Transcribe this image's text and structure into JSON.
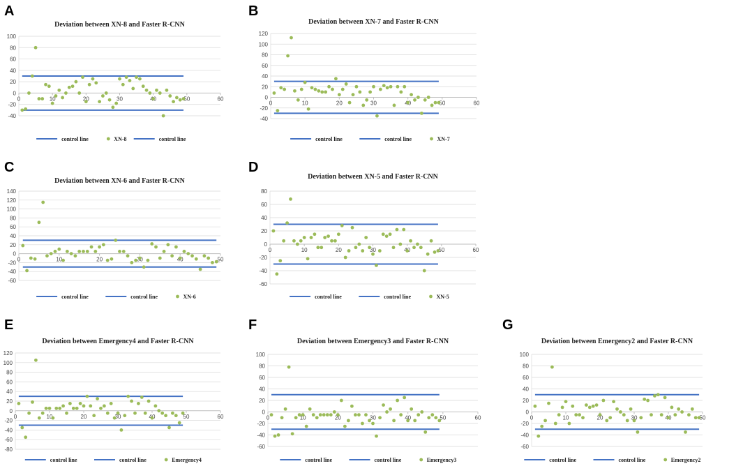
{
  "colors": {
    "control_line": "#4472C4",
    "point": "#9BBB59",
    "gridline": "#D9D9D9",
    "axis": "#BFBFBF"
  },
  "chart_data": [
    {
      "panel": "A",
      "type": "scatter",
      "title": "Deviation between XN-8 and Faster R-CNN",
      "xlim": [
        0,
        60
      ],
      "ylim": [
        -40,
        100
      ],
      "ystep": 20,
      "xticks": [
        0,
        10,
        20,
        30,
        40,
        50,
        60
      ],
      "yticks": [
        -40,
        -20,
        0,
        20,
        40,
        60,
        80,
        100
      ],
      "control_lines": [
        30,
        -30
      ],
      "control_x": [
        1,
        49
      ],
      "series_name": "XN-8",
      "legend": [
        "control line",
        "XN-8",
        "control line"
      ],
      "x": [
        1,
        2,
        3,
        4,
        5,
        6,
        7,
        8,
        9,
        10,
        11,
        12,
        13,
        14,
        15,
        16,
        17,
        18,
        19,
        20,
        21,
        22,
        23,
        24,
        25,
        26,
        27,
        28,
        29,
        30,
        31,
        32,
        33,
        34,
        35,
        36,
        37,
        38,
        39,
        40,
        41,
        42,
        43,
        44,
        45,
        46,
        47,
        48,
        49
      ],
      "y": [
        -30,
        -28,
        0,
        30,
        80,
        -10,
        -10,
        15,
        12,
        -18,
        -5,
        5,
        -8,
        0,
        10,
        12,
        20,
        0,
        28,
        -15,
        15,
        25,
        18,
        -15,
        -5,
        0,
        -12,
        -25,
        -18,
        25,
        15,
        28,
        22,
        8,
        28,
        25,
        12,
        5,
        0,
        -10,
        5,
        0,
        -40,
        5,
        -5,
        -15,
        -8,
        -12,
        -10
      ]
    },
    {
      "panel": "B",
      "type": "scatter",
      "title": "Deviation between XN-7 and Faster R-CNN",
      "xlim": [
        0,
        60
      ],
      "ylim": [
        -40,
        120
      ],
      "ystep": 20,
      "xticks": [
        0,
        10,
        20,
        30,
        40,
        50,
        60
      ],
      "yticks": [
        -40,
        -20,
        0,
        20,
        40,
        60,
        80,
        100,
        120
      ],
      "control_lines": [
        30,
        -30
      ],
      "control_x": [
        1,
        49
      ],
      "series_name": "XN-7",
      "legend": [
        "control line",
        "control line",
        "XN-7"
      ],
      "x": [
        1,
        2,
        3,
        4,
        5,
        6,
        7,
        8,
        9,
        10,
        11,
        12,
        13,
        14,
        15,
        16,
        17,
        18,
        19,
        20,
        21,
        22,
        23,
        24,
        25,
        26,
        27,
        28,
        29,
        30,
        31,
        32,
        33,
        34,
        35,
        36,
        37,
        38,
        39,
        40,
        41,
        42,
        43,
        44,
        45,
        46,
        47,
        48,
        49
      ],
      "y": [
        8,
        -25,
        18,
        15,
        78,
        112,
        12,
        -5,
        15,
        28,
        -22,
        18,
        15,
        12,
        10,
        10,
        20,
        15,
        35,
        5,
        15,
        25,
        -10,
        5,
        20,
        10,
        -15,
        -5,
        10,
        20,
        -35,
        15,
        22,
        18,
        20,
        -15,
        20,
        10,
        20,
        -10,
        5,
        -5,
        0,
        -30,
        -5,
        0,
        -15,
        -10,
        -10
      ]
    },
    {
      "panel": "C",
      "type": "scatter",
      "title": "Deviation between XN-6 and Faster R-CNN",
      "xlim": [
        0,
        50
      ],
      "ylim": [
        -60,
        140
      ],
      "ystep": 20,
      "xticks": [
        0,
        10,
        20,
        30,
        40,
        50
      ],
      "yticks": [
        -60,
        -40,
        -20,
        0,
        20,
        40,
        60,
        80,
        100,
        120,
        140
      ],
      "control_lines": [
        30,
        -30
      ],
      "control_x": [
        1,
        49
      ],
      "series_name": "XN-6",
      "legend": [
        "control line",
        "control line",
        "XN-6"
      ],
      "x": [
        1,
        2,
        3,
        4,
        5,
        6,
        7,
        8,
        9,
        10,
        11,
        12,
        13,
        14,
        15,
        16,
        17,
        18,
        19,
        20,
        21,
        22,
        23,
        24,
        25,
        26,
        27,
        28,
        29,
        30,
        31,
        32,
        33,
        34,
        35,
        36,
        37,
        38,
        39,
        40,
        41,
        42,
        43,
        44,
        45,
        46,
        47,
        48,
        49
      ],
      "y": [
        18,
        -38,
        -10,
        -12,
        70,
        115,
        -5,
        0,
        5,
        10,
        -15,
        5,
        0,
        -5,
        5,
        5,
        5,
        15,
        5,
        15,
        20,
        -15,
        -12,
        30,
        5,
        5,
        -5,
        -20,
        -15,
        -10,
        -30,
        -15,
        22,
        15,
        -10,
        5,
        20,
        -5,
        15,
        -10,
        5,
        0,
        -5,
        -12,
        -35,
        -5,
        -10,
        -20,
        -18
      ]
    },
    {
      "panel": "D",
      "type": "scatter",
      "title": "Deviation between XN-5 and Faster R-CNN",
      "xlim": [
        0,
        60
      ],
      "ylim": [
        -60,
        80
      ],
      "ystep": 20,
      "xticks": [
        0,
        10,
        20,
        30,
        40,
        50,
        60
      ],
      "yticks": [
        -60,
        -40,
        -20,
        0,
        20,
        40,
        60,
        80
      ],
      "control_lines": [
        30,
        -30
      ],
      "control_x": [
        1,
        49
      ],
      "series_name": "XN-5",
      "legend": [
        "control line",
        "control line",
        "XN-5"
      ],
      "x": [
        1,
        2,
        3,
        4,
        5,
        6,
        7,
        8,
        9,
        10,
        11,
        12,
        13,
        14,
        15,
        16,
        17,
        18,
        19,
        20,
        21,
        22,
        23,
        24,
        25,
        26,
        27,
        28,
        29,
        30,
        31,
        32,
        33,
        34,
        35,
        36,
        37,
        38,
        39,
        40,
        41,
        42,
        43,
        44,
        45,
        46,
        47,
        48,
        49
      ],
      "y": [
        20,
        -45,
        -25,
        5,
        32,
        68,
        5,
        0,
        5,
        10,
        -22,
        10,
        15,
        -5,
        -5,
        10,
        12,
        5,
        5,
        15,
        28,
        -20,
        -10,
        25,
        -5,
        0,
        -10,
        10,
        -5,
        -15,
        -32,
        -10,
        15,
        12,
        15,
        -5,
        22,
        0,
        22,
        -10,
        5,
        -5,
        0,
        -5,
        -40,
        -15,
        5,
        -12,
        -10
      ]
    },
    {
      "panel": "E",
      "type": "scatter",
      "title": "Deviation between Emergency4 and Faster R-CNN",
      "xlim": [
        0,
        60
      ],
      "ylim": [
        -80,
        120
      ],
      "ystep": 20,
      "xticks": [
        0,
        10,
        20,
        30,
        40,
        50,
        60
      ],
      "yticks": [
        -80,
        -60,
        -40,
        -20,
        0,
        20,
        40,
        60,
        80,
        100,
        120
      ],
      "control_lines": [
        30,
        -30
      ],
      "control_x": [
        1,
        49
      ],
      "series_name": "Emergency4",
      "legend": [
        "control line",
        "control line",
        "Emergency4"
      ],
      "x": [
        1,
        2,
        3,
        4,
        5,
        6,
        7,
        8,
        9,
        10,
        11,
        12,
        13,
        14,
        15,
        16,
        17,
        18,
        19,
        20,
        21,
        22,
        23,
        24,
        25,
        26,
        27,
        28,
        29,
        30,
        31,
        32,
        33,
        34,
        35,
        36,
        37,
        38,
        39,
        40,
        41,
        42,
        43,
        44,
        45,
        46,
        47,
        48,
        49
      ],
      "y": [
        15,
        -35,
        -55,
        -5,
        18,
        105,
        -15,
        -5,
        5,
        5,
        -15,
        5,
        5,
        10,
        -5,
        15,
        5,
        5,
        15,
        10,
        30,
        10,
        -10,
        25,
        5,
        10,
        -5,
        15,
        -15,
        -5,
        -40,
        -10,
        30,
        20,
        -5,
        15,
        28,
        -5,
        20,
        -15,
        10,
        0,
        -5,
        -10,
        -35,
        -5,
        -10,
        -25,
        -5
      ]
    },
    {
      "panel": "F",
      "type": "scatter",
      "title": "Deviation between Emergency3 and Faster R-CNN",
      "xlim": [
        0,
        60
      ],
      "ylim": [
        -60,
        100
      ],
      "ystep": 20,
      "xticks": [
        0,
        10,
        20,
        30,
        40,
        50,
        60
      ],
      "yticks": [
        -60,
        -40,
        -20,
        0,
        20,
        40,
        60,
        80,
        100
      ],
      "control_lines": [
        30,
        -30
      ],
      "control_x": [
        1,
        49
      ],
      "series_name": "Emergency3",
      "legend": [
        "control line",
        "control line",
        "Emergency3"
      ],
      "x": [
        1,
        2,
        3,
        4,
        5,
        6,
        7,
        8,
        9,
        10,
        11,
        12,
        13,
        14,
        15,
        16,
        17,
        18,
        19,
        20,
        21,
        22,
        23,
        24,
        25,
        26,
        27,
        28,
        29,
        30,
        31,
        32,
        33,
        34,
        35,
        36,
        37,
        38,
        39,
        40,
        41,
        42,
        43,
        44,
        45,
        46,
        47,
        48,
        49
      ],
      "y": [
        -5,
        -42,
        -40,
        -10,
        5,
        78,
        -38,
        -10,
        -5,
        -5,
        -25,
        5,
        -5,
        -10,
        -5,
        -5,
        -5,
        -5,
        0,
        -5,
        20,
        -25,
        -15,
        10,
        -5,
        -5,
        -20,
        -5,
        -15,
        -20,
        -42,
        -10,
        12,
        0,
        5,
        -15,
        20,
        -5,
        25,
        -15,
        5,
        -15,
        -5,
        0,
        -35,
        -10,
        -5,
        -10,
        -15
      ]
    },
    {
      "panel": "G",
      "type": "scatter",
      "title": "Deviation between Emergency2 and Faster R-CNN",
      "xlim": [
        0,
        50
      ],
      "ylim": [
        -60,
        100
      ],
      "ystep": 20,
      "xticks": [
        0,
        10,
        20,
        30,
        40,
        50
      ],
      "yticks": [
        -60,
        -40,
        -20,
        0,
        20,
        40,
        60,
        80,
        100
      ],
      "control_lines": [
        30,
        -30
      ],
      "control_x": [
        1,
        49
      ],
      "series_name": "Emergency2",
      "legend": [
        "control line",
        "control line",
        "Emergency2"
      ],
      "x": [
        1,
        2,
        3,
        4,
        5,
        6,
        7,
        8,
        9,
        10,
        11,
        12,
        13,
        14,
        15,
        16,
        17,
        18,
        19,
        20,
        21,
        22,
        23,
        24,
        25,
        26,
        27,
        28,
        29,
        30,
        31,
        32,
        33,
        34,
        35,
        36,
        37,
        38,
        39,
        40,
        41,
        42,
        43,
        44,
        45,
        46,
        47,
        48,
        49
      ],
      "y": [
        10,
        -42,
        -25,
        -15,
        15,
        78,
        -20,
        -5,
        8,
        18,
        -20,
        10,
        -5,
        -5,
        -10,
        12,
        8,
        10,
        12,
        -5,
        20,
        -15,
        -10,
        18,
        5,
        0,
        -5,
        -15,
        5,
        -15,
        -35,
        -10,
        22,
        20,
        -5,
        28,
        30,
        -5,
        25,
        -10,
        8,
        -5,
        5,
        0,
        -35,
        -5,
        5,
        -10,
        -10
      ]
    }
  ]
}
